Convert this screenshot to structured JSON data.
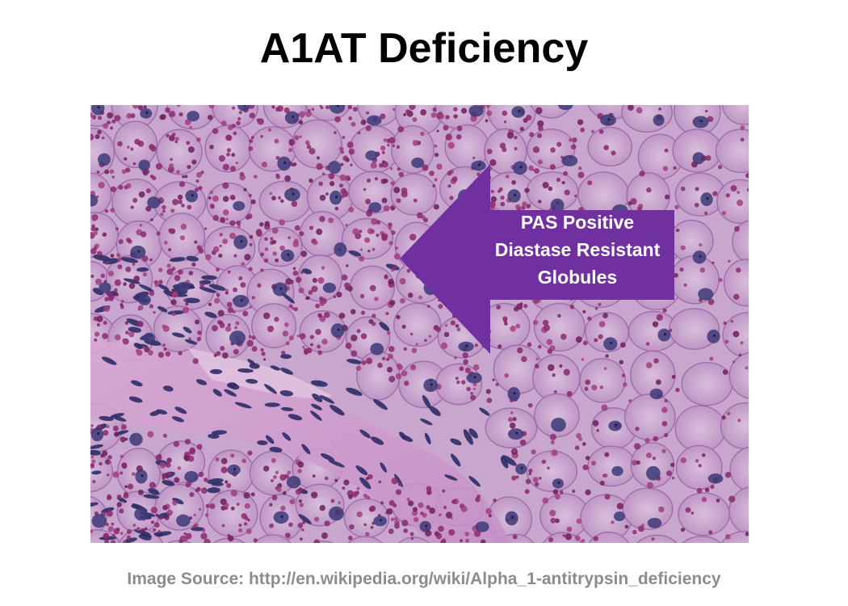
{
  "slide": {
    "title": "A1AT Deficiency",
    "callout": {
      "lines": [
        "PAS Positive",
        "Diastase Resistant",
        "Globules"
      ],
      "color": "#7030a0",
      "text_color": "#ffffff"
    },
    "source": "Image Source: http://en.wikipedia.org/wiki/Alpha_1-antitrypsin_deficiency",
    "colors": {
      "title": "#000000",
      "source_text": "#8c8c8c",
      "stain_background": "#c7a3cc",
      "nuclei": "#3d3a78",
      "globules": "#8a2a6e"
    }
  }
}
